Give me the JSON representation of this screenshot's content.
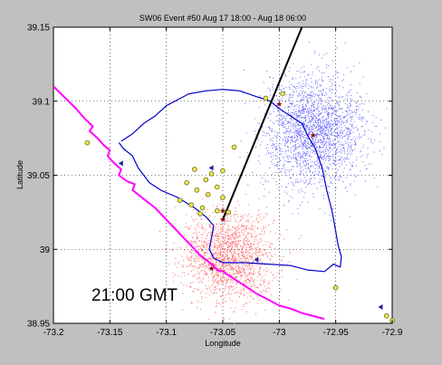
{
  "chart_data": {
    "type": "scatter",
    "title": "SW06 Event #50 Aug 17 18:00 - Aug 18 06:00",
    "xlabel": "Longitude",
    "ylabel": "Latitude",
    "xlim": [
      -73.2,
      -72.9
    ],
    "ylim": [
      38.95,
      39.15
    ],
    "x_ticks": [
      -73.2,
      -73.15,
      -73.1,
      -73.05,
      -73.0,
      -72.95,
      -72.9
    ],
    "x_tick_labels": [
      "-73.2",
      "-73.15",
      "-73.1",
      "-73.05",
      "-73",
      "-72.95",
      "-72.9"
    ],
    "y_ticks": [
      38.95,
      39.0,
      39.05,
      39.1,
      39.15
    ],
    "y_tick_labels": [
      "38.95",
      "39",
      "39.05",
      "39.1",
      "39.15"
    ],
    "grid": true,
    "annotation": "21:00 GMT",
    "colors": {
      "background": "#c0c0c0",
      "plot": "#ffffff",
      "magenta_track": "#ff00ff",
      "blue_track": "#0000cc",
      "black_line": "#000000",
      "blue_cloud": "#6a6aff",
      "red_cloud": "#ff6a6a",
      "mooring_fill": "#e8e860",
      "mooring_edge": "#707000",
      "flag": "#2020a0",
      "star": "#8b1010"
    },
    "series": [
      {
        "kind": "line",
        "color": "#ff00ff",
        "points": [
          [
            -73.2,
            39.11
          ],
          [
            -73.18,
            39.095
          ],
          [
            -73.172,
            39.088
          ],
          [
            -73.165,
            39.083
          ],
          [
            -73.168,
            39.08
          ],
          [
            -73.161,
            39.075
          ],
          [
            -73.155,
            39.07
          ],
          [
            -73.15,
            39.067
          ],
          [
            -73.152,
            39.063
          ],
          [
            -73.146,
            39.058
          ],
          [
            -73.14,
            39.054
          ],
          [
            -73.142,
            39.05
          ],
          [
            -73.135,
            39.046
          ],
          [
            -73.128,
            39.044
          ],
          [
            -73.13,
            39.04
          ],
          [
            -73.12,
            39.034
          ],
          [
            -73.11,
            39.028
          ],
          [
            -73.1,
            39.02
          ],
          [
            -73.09,
            39.012
          ],
          [
            -73.08,
            39.004
          ],
          [
            -73.07,
            38.996
          ],
          [
            -73.06,
            38.99
          ],
          [
            -73.055,
            38.986
          ],
          [
            -73.05,
            38.985
          ],
          [
            -73.04,
            38.98
          ],
          [
            -73.03,
            38.975
          ],
          [
            -73.02,
            38.97
          ],
          [
            -73.01,
            38.966
          ],
          [
            -73.0,
            38.962
          ],
          [
            -72.99,
            38.96
          ],
          [
            -72.98,
            38.957
          ],
          [
            -72.96,
            38.953
          ]
        ]
      },
      {
        "kind": "line",
        "color": "#0000cc",
        "points": [
          [
            -73.14,
            39.073
          ],
          [
            -73.13,
            39.078
          ],
          [
            -73.12,
            39.085
          ],
          [
            -73.11,
            39.09
          ],
          [
            -73.1,
            39.097
          ],
          [
            -73.09,
            39.101
          ],
          [
            -73.08,
            39.105
          ],
          [
            -73.065,
            39.107
          ],
          [
            -73.05,
            39.108
          ],
          [
            -73.035,
            39.107
          ],
          [
            -73.02,
            39.103
          ],
          [
            -73.008,
            39.1
          ],
          [
            -73.0,
            39.095
          ],
          [
            -72.99,
            39.09
          ],
          [
            -72.98,
            39.085
          ],
          [
            -72.975,
            39.077
          ],
          [
            -72.968,
            39.068
          ],
          [
            -72.962,
            39.055
          ],
          [
            -72.958,
            39.04
          ],
          [
            -72.953,
            39.025
          ],
          [
            -72.95,
            39.012
          ],
          [
            -72.948,
            39.003
          ],
          [
            -72.945,
            38.995
          ],
          [
            -72.946,
            38.988
          ],
          [
            -72.952,
            38.99
          ],
          [
            -72.96,
            38.985
          ],
          [
            -72.975,
            38.986
          ],
          [
            -72.99,
            38.989
          ],
          [
            -73.01,
            38.99
          ],
          [
            -73.03,
            38.991
          ],
          [
            -73.05,
            38.991
          ],
          [
            -73.058,
            38.994
          ],
          [
            -73.062,
            39.0
          ],
          [
            -73.06,
            39.008
          ],
          [
            -73.058,
            39.016
          ],
          [
            -73.065,
            39.022
          ],
          [
            -73.075,
            39.028
          ],
          [
            -73.09,
            39.035
          ],
          [
            -73.105,
            39.04
          ],
          [
            -73.115,
            39.045
          ],
          [
            -73.125,
            39.055
          ],
          [
            -73.13,
            39.063
          ],
          [
            -73.138,
            39.068
          ],
          [
            -73.142,
            39.072
          ]
        ]
      },
      {
        "kind": "line",
        "color": "#000000",
        "points": [
          [
            -73.05,
            39.02
          ],
          [
            -72.98,
            39.15
          ]
        ]
      },
      {
        "kind": "points",
        "name": "moorings",
        "points": [
          [
            -73.17,
            39.072
          ],
          [
            -73.04,
            39.069
          ],
          [
            -72.997,
            39.105
          ],
          [
            -73.012,
            39.102
          ],
          [
            -73.06,
            39.051
          ],
          [
            -73.05,
            39.053
          ],
          [
            -73.075,
            39.054
          ],
          [
            -73.065,
            39.047
          ],
          [
            -73.055,
            39.042
          ],
          [
            -73.082,
            39.045
          ],
          [
            -73.073,
            39.04
          ],
          [
            -73.063,
            39.037
          ],
          [
            -73.05,
            39.035
          ],
          [
            -73.088,
            39.033
          ],
          [
            -73.078,
            39.03
          ],
          [
            -73.068,
            39.028
          ],
          [
            -73.055,
            39.026
          ],
          [
            -73.045,
            39.025
          ],
          [
            -73.07,
            39.024
          ],
          [
            -72.95,
            38.974
          ],
          [
            -72.905,
            38.955
          ],
          [
            -72.9,
            38.952
          ]
        ]
      },
      {
        "kind": "points",
        "name": "flags",
        "points": [
          [
            -73.14,
            39.058
          ],
          [
            -73.06,
            39.055
          ],
          [
            -73.02,
            38.993
          ],
          [
            -72.91,
            38.961
          ]
        ]
      },
      {
        "kind": "points",
        "name": "stars",
        "points": [
          [
            -73.0,
            39.098
          ],
          [
            -72.97,
            39.077
          ],
          [
            -73.05,
            39.02
          ],
          [
            -73.05,
            39.026
          ],
          [
            -73.06,
            38.987
          ]
        ]
      },
      {
        "kind": "cloud",
        "name": "blue-cloud",
        "center": [
          -72.97,
          39.08
        ],
        "spread": [
          0.022,
          0.018
        ],
        "count": 2200
      },
      {
        "kind": "cloud",
        "name": "red-cloud",
        "center": [
          -73.045,
          38.995
        ],
        "spread": [
          0.02,
          0.015
        ],
        "count": 1700
      }
    ]
  }
}
